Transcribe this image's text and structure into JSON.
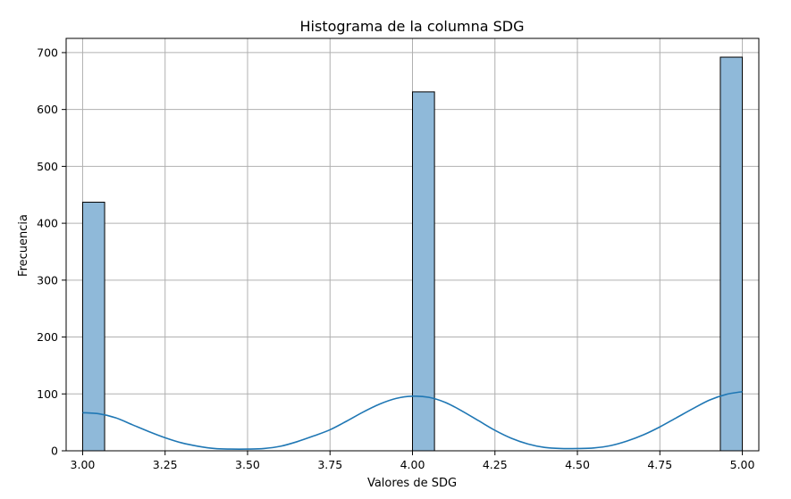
{
  "chart_data": {
    "type": "bar",
    "title": "Histograma de la columna SDG",
    "xlabel": "Valores de SDG",
    "ylabel": "Frecuencia",
    "xlim": [
      2.95,
      5.05
    ],
    "ylim": [
      0,
      725
    ],
    "grid": true,
    "bin_width": 0.0667,
    "bars": [
      {
        "x0": 3.0,
        "x1": 3.0667,
        "value": 437
      },
      {
        "x0": 3.9333,
        "x1": 4.0,
        "value": 0
      },
      {
        "x0": 4.0,
        "x1": 4.0667,
        "value": 631
      },
      {
        "x0": 4.9333,
        "x1": 5.0,
        "value": 692
      }
    ],
    "kde": {
      "name": "",
      "x": [
        3.0,
        3.05,
        3.1,
        3.15,
        3.2,
        3.25,
        3.3,
        3.35,
        3.4,
        3.45,
        3.5,
        3.55,
        3.6,
        3.65,
        3.7,
        3.75,
        3.8,
        3.85,
        3.9,
        3.95,
        4.0,
        4.05,
        4.1,
        4.15,
        4.2,
        4.25,
        4.3,
        4.35,
        4.4,
        4.45,
        4.5,
        4.55,
        4.6,
        4.65,
        4.7,
        4.75,
        4.8,
        4.85,
        4.9,
        4.95,
        5.0
      ],
      "y": [
        67,
        65,
        58,
        46,
        34,
        23,
        14,
        8,
        4,
        3,
        3,
        4,
        8,
        16,
        26,
        37,
        52,
        68,
        82,
        92,
        96,
        94,
        85,
        70,
        53,
        36,
        22,
        12,
        6,
        4,
        4,
        5,
        9,
        17,
        28,
        42,
        58,
        74,
        89,
        99,
        104
      ]
    },
    "xticks": [
      "3.00",
      "3.25",
      "3.50",
      "3.75",
      "4.00",
      "4.25",
      "4.50",
      "4.75",
      "5.00"
    ],
    "xtick_values": [
      3.0,
      3.25,
      3.5,
      3.75,
      4.0,
      4.25,
      4.5,
      4.75,
      5.0
    ],
    "yticks": [
      "0",
      "100",
      "200",
      "300",
      "400",
      "500",
      "600",
      "700"
    ],
    "ytick_values": [
      0,
      100,
      200,
      300,
      400,
      500,
      600,
      700
    ],
    "colors": {
      "bar_fill": "#8fb9d9",
      "bar_edge": "#000000",
      "kde_line": "#1f77b4",
      "grid": "#b0b0b0"
    }
  }
}
